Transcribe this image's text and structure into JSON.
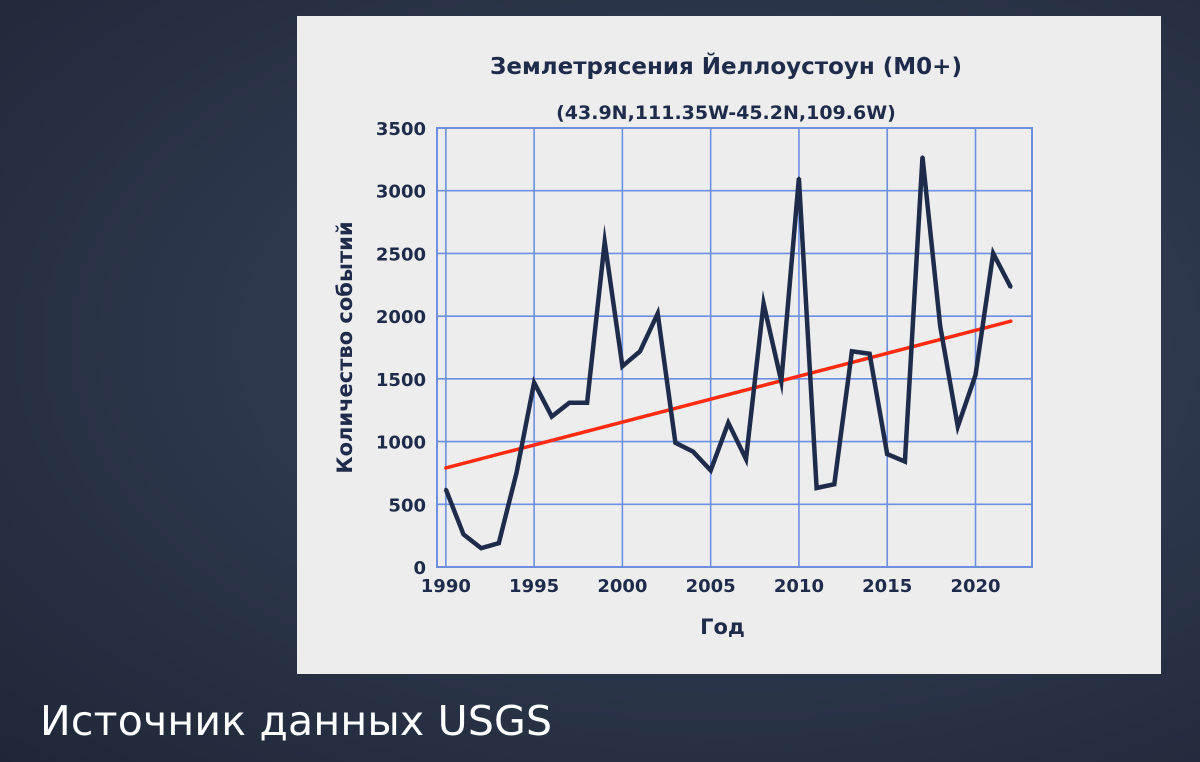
{
  "slide": {
    "caption": "Источник данных USGS"
  },
  "colors": {
    "series": "#1f2b4a",
    "trend": "#ff2a10",
    "grid": "#6d8fe2",
    "text": "#1f2b4a"
  },
  "chart_data": {
    "type": "line",
    "title": "Землетрясения Йеллоустоун (M0+)",
    "subtitle": "(43.9N,111.35W-45.2N,109.6W)",
    "xlabel": "Год",
    "ylabel": "Количество событий",
    "xlim": [
      1989.5,
      2023.2
    ],
    "ylim": [
      0,
      3500
    ],
    "x_ticks": [
      1990,
      1995,
      2000,
      2005,
      2010,
      2015,
      2020
    ],
    "x_tick_labels": [
      "1990",
      "1995",
      "2000",
      "2005",
      "2010",
      "2015",
      "2020"
    ],
    "y_ticks": [
      0,
      500,
      1000,
      1500,
      2000,
      2500,
      3000,
      3500
    ],
    "y_tick_labels": [
      "0",
      "500",
      "1000",
      "1500",
      "2000",
      "2500",
      "3000",
      "3500"
    ],
    "grid": true,
    "legend": "none",
    "series": [
      {
        "x": [
          1990,
          1991,
          1992,
          1993,
          1994,
          1995,
          1996,
          1997,
          1998,
          1999,
          2000,
          2001,
          2002,
          2003,
          2004,
          2005,
          2006,
          2007,
          2008,
          2009,
          2010,
          2011,
          2012,
          2013,
          2014,
          2015,
          2016,
          2017,
          2018,
          2019,
          2020,
          2021,
          2022
        ],
        "y": [
          620,
          260,
          150,
          190,
          750,
          1470,
          1200,
          1310,
          1310,
          2590,
          1600,
          1720,
          2020,
          990,
          920,
          770,
          1150,
          860,
          2100,
          1480,
          3100,
          630,
          660,
          1720,
          1700,
          900,
          840,
          3270,
          1920,
          1120,
          1530,
          2500,
          2230
        ]
      }
    ],
    "trendline": {
      "x": [
        1990,
        2022
      ],
      "y": [
        790,
        1960
      ]
    }
  }
}
